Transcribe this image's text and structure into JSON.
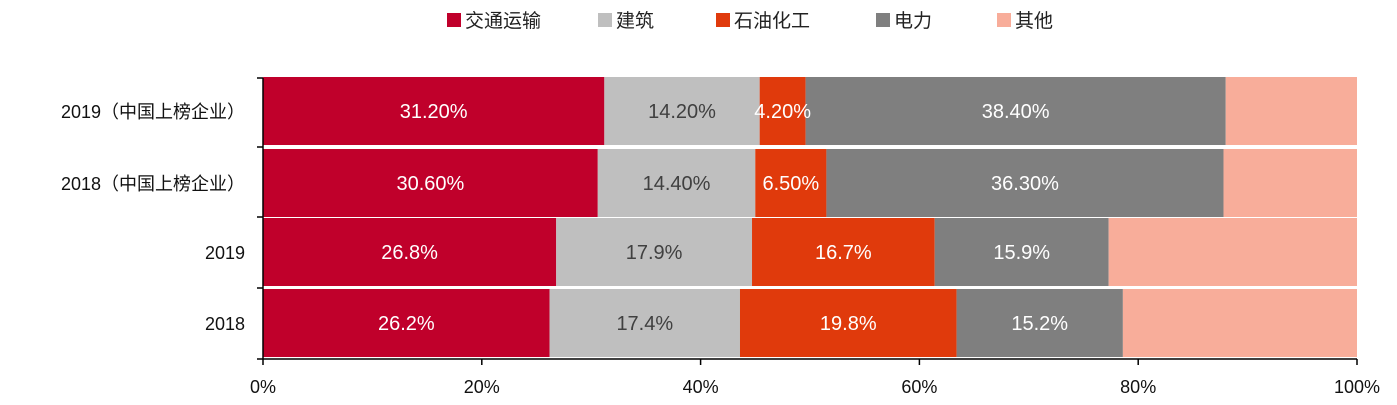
{
  "chart_data": {
    "type": "bar",
    "orientation": "horizontal",
    "stacked": true,
    "normalized": true,
    "categories": [
      "2019（中国上榜企业）",
      "2018（中国上榜企业）",
      "2019",
      "2018"
    ],
    "series": [
      {
        "name": "交通运输",
        "color": "#c0002b",
        "values": [
          31.2,
          30.6,
          26.8,
          26.2
        ],
        "labels": [
          "31.20%",
          "30.60%",
          "26.8%",
          "26.2%"
        ],
        "label_color": "#ffffff"
      },
      {
        "name": "建筑",
        "color": "#bfbfbf",
        "values": [
          14.2,
          14.4,
          17.9,
          17.4
        ],
        "labels": [
          "14.20%",
          "14.40%",
          "17.9%",
          "17.4%"
        ],
        "label_color": "#404040"
      },
      {
        "name": "石油化工",
        "color": "#e03a0c",
        "values": [
          4.2,
          6.5,
          16.7,
          19.8
        ],
        "labels": [
          "4.20%",
          "6.50%",
          "16.7%",
          "19.8%"
        ],
        "label_color": "#ffffff"
      },
      {
        "name": "电力",
        "color": "#7f7f7f",
        "values": [
          38.4,
          36.3,
          15.9,
          15.2
        ],
        "labels": [
          "38.40%",
          "36.30%",
          "15.9%",
          "15.2%"
        ],
        "label_color": "#ffffff"
      },
      {
        "name": "其他",
        "color": "#f8ad9a",
        "values": [
          12.0,
          12.2,
          22.7,
          21.4
        ],
        "labels": [
          "",
          "",
          "",
          ""
        ],
        "label_color": "#ffffff"
      }
    ],
    "xlim": [
      0,
      100
    ],
    "x_ticks": [
      0,
      20,
      40,
      60,
      80,
      100
    ],
    "x_tick_labels": [
      "0%",
      "20%",
      "40%",
      "60%",
      "80%",
      "100%"
    ],
    "legend_position": "top-center",
    "grid": false
  }
}
